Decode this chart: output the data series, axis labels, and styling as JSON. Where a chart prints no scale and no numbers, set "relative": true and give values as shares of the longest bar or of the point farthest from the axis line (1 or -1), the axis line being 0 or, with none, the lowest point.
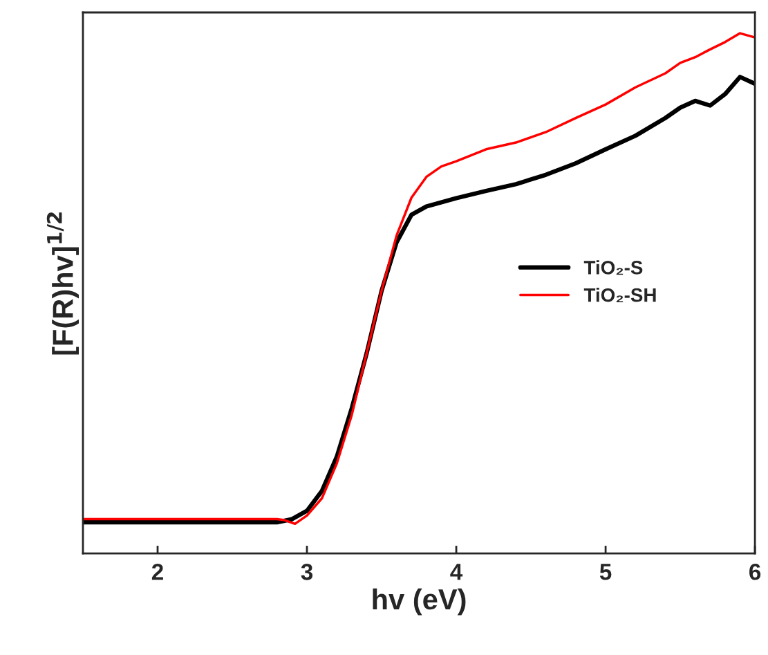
{
  "chart_data": {
    "type": "line",
    "xlabel": "hv (eV)",
    "ylabel": "[F(R)hv]$^{1/2}$",
    "relative": true,
    "xlim": [
      1.5,
      6
    ],
    "xticks": [
      2,
      3,
      4,
      5,
      6
    ],
    "grid": false,
    "legend": "right",
    "line_style": "solid",
    "series": [
      {
        "name": "TiO₂-S",
        "color": "#000000",
        "x": [
          1.5,
          2.8,
          2.9,
          3.0,
          3.1,
          3.2,
          3.3,
          3.4,
          3.5,
          3.6,
          3.7,
          3.8,
          3.9,
          4.0,
          4.2,
          4.4,
          4.6,
          4.8,
          5.0,
          5.2,
          5.4,
          5.5,
          5.6,
          5.7,
          5.8,
          5.9,
          6.0
        ],
        "values": [
          0.06,
          0.06,
          0.066,
          0.082,
          0.12,
          0.186,
          0.279,
          0.385,
          0.505,
          0.598,
          0.651,
          0.667,
          0.675,
          0.683,
          0.697,
          0.71,
          0.728,
          0.75,
          0.777,
          0.803,
          0.837,
          0.857,
          0.87,
          0.861,
          0.883,
          0.916,
          0.903
        ]
      },
      {
        "name": "TiO₂-SH",
        "color": "#ff0000",
        "x": [
          1.5,
          2.8,
          2.85,
          2.92,
          3.0,
          3.1,
          3.2,
          3.3,
          3.4,
          3.5,
          3.6,
          3.7,
          3.8,
          3.9,
          4.0,
          4.2,
          4.4,
          4.6,
          4.8,
          5.0,
          5.2,
          5.4,
          5.5,
          5.6,
          5.7,
          5.8,
          5.9,
          6.0
        ],
        "values": [
          0.066,
          0.066,
          0.064,
          0.057,
          0.073,
          0.106,
          0.173,
          0.266,
          0.385,
          0.505,
          0.611,
          0.684,
          0.724,
          0.744,
          0.754,
          0.777,
          0.79,
          0.81,
          0.837,
          0.863,
          0.896,
          0.923,
          0.943,
          0.954,
          0.969,
          0.983,
          1.0,
          0.992
        ]
      }
    ]
  }
}
